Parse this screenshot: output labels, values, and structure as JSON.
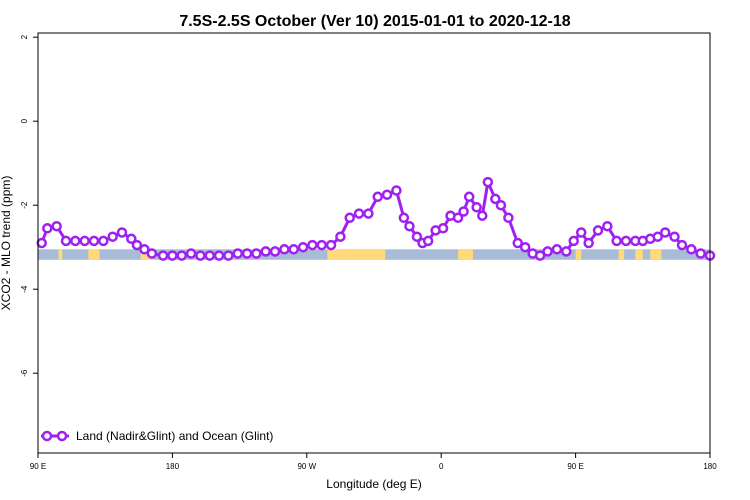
{
  "chart_data": {
    "type": "line",
    "title": "7.5S-2.5S October (Ver 10)   2015-01-01 to 2020-12-18",
    "xlabel": "Longitude (deg E)",
    "ylabel": "XCO2 - MLO trend (ppm)",
    "xlim": [
      90,
      450
    ],
    "ylim": [
      -7.9,
      2.1
    ],
    "x_ticks": [
      {
        "value": 90,
        "label": "90 E"
      },
      {
        "value": 162,
        "label": "180"
      },
      {
        "value": 234,
        "label": "90 W"
      },
      {
        "value": 306,
        "label": "0"
      },
      {
        "value": 378,
        "label": "90 E"
      },
      {
        "value": 450,
        "label": "180"
      }
    ],
    "y_ticks": [
      {
        "value": 2,
        "label": "2"
      },
      {
        "value": 0,
        "label": "0"
      },
      {
        "value": -2,
        "label": "-2"
      },
      {
        "value": -4,
        "label": "-4"
      },
      {
        "value": -6,
        "label": "-6"
      }
    ],
    "grid": false,
    "legend_position": "bottom-left",
    "series": [
      {
        "name": "Land (Nadir&Glint) and Ocean (Glint)",
        "color": "#a020f0",
        "x": [
          92,
          95,
          100,
          105,
          110,
          115,
          120,
          125,
          130,
          135,
          140,
          143,
          147,
          151,
          157,
          162,
          167,
          172,
          177,
          182,
          187,
          192,
          197,
          202,
          207,
          212,
          217,
          222,
          227,
          232,
          237,
          242,
          247,
          252,
          257,
          262,
          267,
          272,
          277,
          282,
          286,
          289,
          293,
          296,
          299,
          303,
          307,
          311,
          315,
          318,
          321,
          325,
          328,
          331,
          335,
          338,
          342,
          347,
          351,
          355,
          359,
          363,
          368,
          373,
          377,
          381,
          385,
          390,
          395,
          400,
          405,
          410,
          414,
          418,
          422,
          426,
          431,
          435,
          440,
          445,
          450
        ],
        "y": [
          -2.9,
          -2.55,
          -2.5,
          -2.85,
          -2.85,
          -2.85,
          -2.85,
          -2.85,
          -2.75,
          -2.65,
          -2.8,
          -2.95,
          -3.05,
          -3.15,
          -3.2,
          -3.2,
          -3.2,
          -3.15,
          -3.2,
          -3.2,
          -3.2,
          -3.2,
          -3.15,
          -3.15,
          -3.15,
          -3.1,
          -3.1,
          -3.05,
          -3.05,
          -3.0,
          -2.95,
          -2.95,
          -2.95,
          -2.75,
          -2.3,
          -2.2,
          -2.2,
          -1.8,
          -1.75,
          -1.65,
          -2.3,
          -2.5,
          -2.75,
          -2.9,
          -2.85,
          -2.6,
          -2.55,
          -2.25,
          -2.3,
          -2.15,
          -1.8,
          -2.05,
          -2.25,
          -1.45,
          -1.85,
          -2.0,
          -2.3,
          -2.9,
          -3.0,
          -3.15,
          -3.2,
          -3.1,
          -3.05,
          -3.1,
          -2.85,
          -2.65,
          -2.9,
          -2.6,
          -2.5,
          -2.85,
          -2.85,
          -2.85,
          -2.85,
          -2.8,
          -2.75,
          -2.65,
          -2.75,
          -2.95,
          -3.05,
          -3.15,
          -3.2
        ]
      }
    ],
    "surface_band": {
      "y_range": [
        -3.3,
        -3.05
      ],
      "land_color": "#ffd97a",
      "ocean_color": "#a8bcd8",
      "land_segments": [
        [
          101,
          103
        ],
        [
          117,
          123
        ],
        [
          145,
          152
        ],
        [
          245,
          276
        ],
        [
          315,
          323
        ],
        [
          378,
          381
        ],
        [
          401,
          404
        ],
        [
          410,
          414
        ],
        [
          418,
          424
        ]
      ]
    }
  }
}
